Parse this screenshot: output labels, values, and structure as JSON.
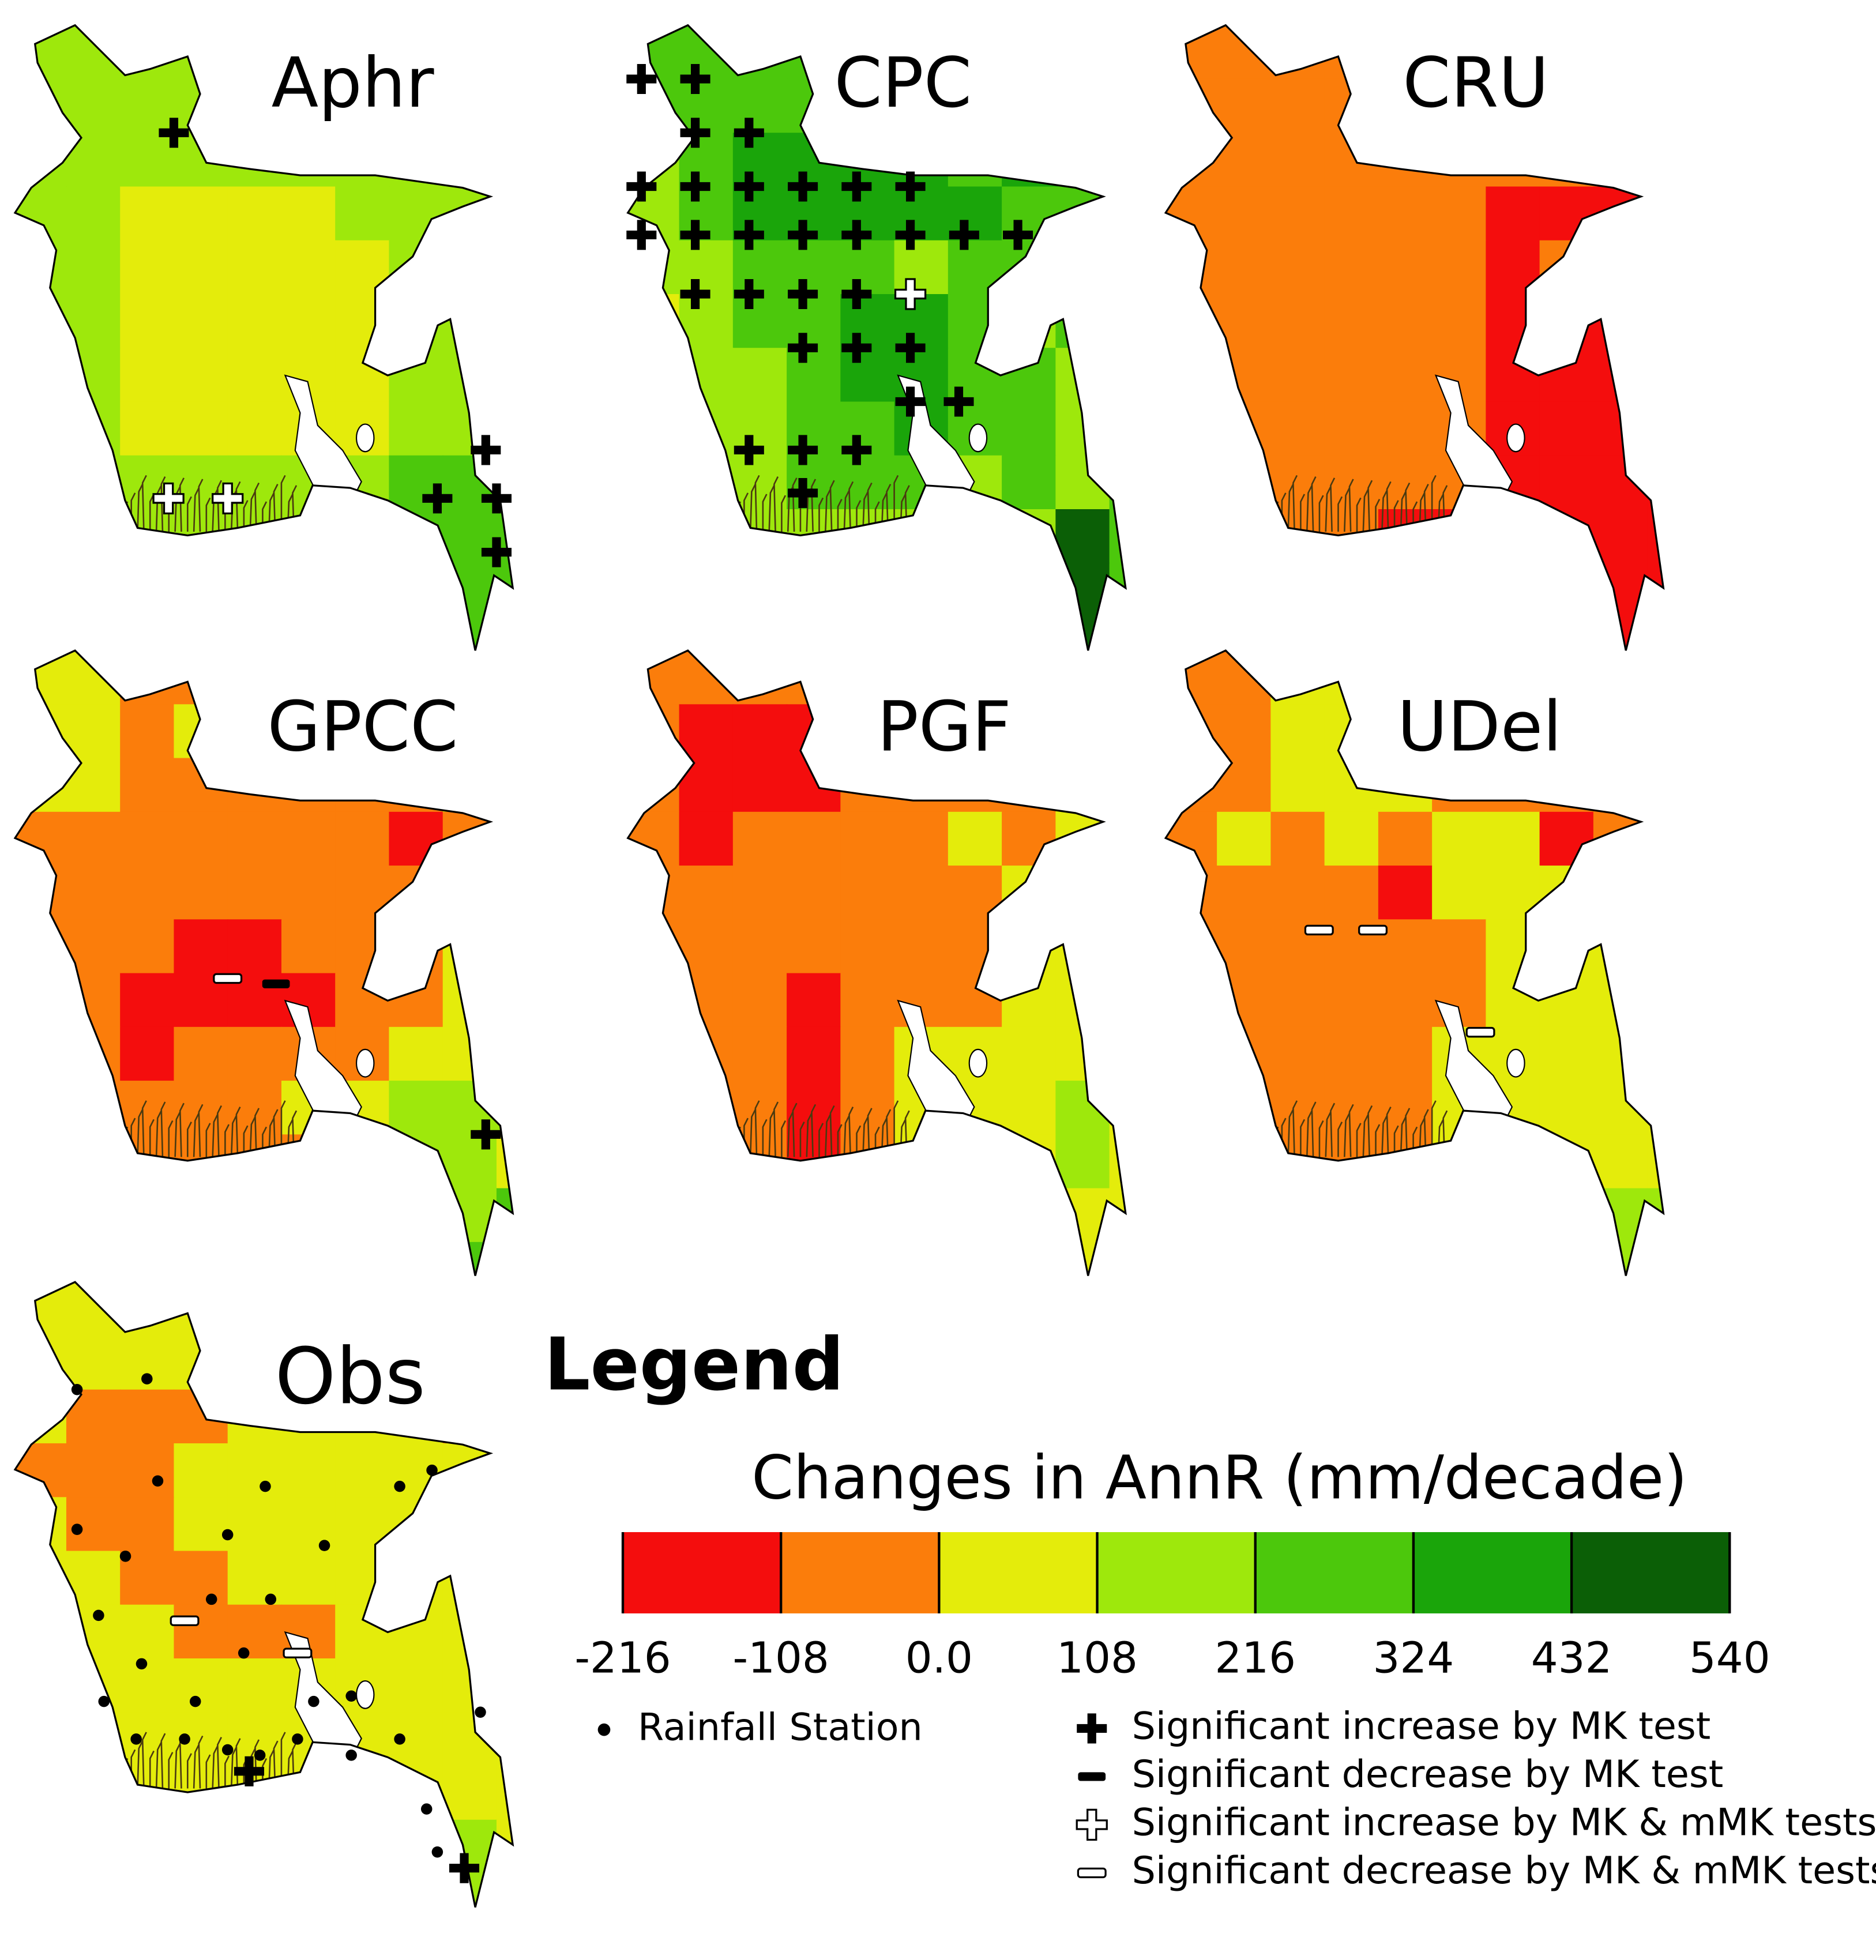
{
  "panels": [
    {
      "title": "Aphr",
      "grid": [
        [
          3,
          3,
          3,
          3,
          3,
          3,
          3,
          3,
          3,
          3
        ],
        [
          3,
          3,
          3,
          3,
          3,
          3,
          3,
          3,
          3,
          3
        ],
        [
          3,
          3,
          3,
          3,
          3,
          3,
          3,
          3,
          3,
          3
        ],
        [
          3,
          3,
          2,
          2,
          2,
          2,
          3,
          3,
          3,
          3
        ],
        [
          3,
          3,
          2,
          2,
          2,
          2,
          2,
          3,
          3,
          3
        ],
        [
          3,
          3,
          2,
          2,
          2,
          2,
          2,
          3,
          3,
          3
        ],
        [
          3,
          3,
          2,
          2,
          2,
          2,
          2,
          3,
          3,
          3
        ],
        [
          3,
          3,
          2,
          2,
          2,
          2,
          2,
          3,
          3,
          3
        ],
        [
          3,
          3,
          3,
          3,
          3,
          3,
          3,
          4,
          4,
          4
        ],
        [
          3,
          3,
          3,
          3,
          3,
          3,
          3,
          4,
          4,
          4
        ],
        [
          3,
          3,
          3,
          3,
          3,
          3,
          3,
          4,
          4,
          4
        ],
        [
          3,
          3,
          3,
          3,
          3,
          3,
          3,
          4,
          4,
          4
        ]
      ],
      "markers": [
        [
          3.0,
          2.0,
          0
        ],
        [
          8.8,
          7.9,
          0
        ],
        [
          7.9,
          8.8,
          0
        ],
        [
          9.0,
          8.8,
          0
        ],
        [
          9.0,
          9.8,
          0
        ],
        [
          2.9,
          8.8,
          2
        ],
        [
          4.0,
          8.8,
          2
        ]
      ]
    },
    {
      "title": "CPC",
      "grid": [
        [
          4,
          4,
          4,
          4,
          4,
          4,
          4,
          4,
          4,
          4
        ],
        [
          4,
          4,
          4,
          4,
          4,
          4,
          4,
          4,
          4,
          4
        ],
        [
          3,
          4,
          5,
          5,
          5,
          5,
          4,
          5,
          5,
          5
        ],
        [
          3,
          4,
          5,
          5,
          5,
          5,
          5,
          4,
          4,
          4
        ],
        [
          3,
          3,
          4,
          4,
          4,
          3,
          4,
          4,
          4,
          4
        ],
        [
          2,
          3,
          4,
          4,
          5,
          5,
          4,
          3,
          4,
          4
        ],
        [
          3,
          3,
          3,
          4,
          5,
          5,
          4,
          4,
          3,
          3
        ],
        [
          3,
          3,
          3,
          4,
          4,
          5,
          4,
          4,
          3,
          3
        ],
        [
          2,
          3,
          3,
          4,
          4,
          4,
          3,
          4,
          3,
          4
        ],
        [
          3,
          3,
          3,
          3,
          3,
          3,
          3,
          3,
          6,
          4
        ],
        [
          3,
          3,
          3,
          3,
          3,
          3,
          3,
          3,
          6,
          4
        ],
        [
          3,
          3,
          3,
          3,
          3,
          3,
          3,
          3,
          6,
          4
        ]
      ],
      "markers": [
        [
          0.3,
          1.0,
          0
        ],
        [
          1.3,
          1.0,
          0
        ],
        [
          1.3,
          2.0,
          0
        ],
        [
          2.3,
          2.0,
          0
        ],
        [
          0.3,
          3.0,
          0
        ],
        [
          1.3,
          3.0,
          0
        ],
        [
          2.3,
          3.0,
          0
        ],
        [
          3.3,
          3.0,
          0
        ],
        [
          4.3,
          3.0,
          0
        ],
        [
          5.3,
          3.0,
          0
        ],
        [
          0.3,
          3.9,
          0
        ],
        [
          1.3,
          3.9,
          0
        ],
        [
          2.3,
          3.9,
          0
        ],
        [
          3.3,
          3.9,
          0
        ],
        [
          4.3,
          3.9,
          0
        ],
        [
          5.3,
          3.9,
          0
        ],
        [
          6.3,
          3.9,
          0
        ],
        [
          7.3,
          3.9,
          0
        ],
        [
          1.3,
          5.0,
          0
        ],
        [
          2.3,
          5.0,
          0
        ],
        [
          3.3,
          5.0,
          0
        ],
        [
          4.3,
          5.0,
          0
        ],
        [
          5.3,
          5.0,
          2
        ],
        [
          3.3,
          6.0,
          0
        ],
        [
          4.3,
          6.0,
          0
        ],
        [
          5.3,
          6.0,
          0
        ],
        [
          5.3,
          7.0,
          0
        ],
        [
          6.2,
          7.0,
          0
        ],
        [
          2.3,
          7.9,
          0
        ],
        [
          3.3,
          7.9,
          0
        ],
        [
          4.3,
          7.9,
          0
        ],
        [
          3.3,
          8.7,
          0
        ]
      ]
    },
    {
      "title": "CRU",
      "grid": [
        [
          1,
          1,
          1,
          1,
          1,
          1,
          1,
          1,
          1,
          1
        ],
        [
          1,
          1,
          1,
          1,
          1,
          1,
          1,
          1,
          1,
          1
        ],
        [
          1,
          1,
          1,
          1,
          1,
          1,
          1,
          1,
          1,
          1
        ],
        [
          1,
          1,
          1,
          1,
          1,
          1,
          0,
          0,
          0,
          0
        ],
        [
          1,
          1,
          1,
          1,
          1,
          1,
          0,
          1,
          0,
          0
        ],
        [
          1,
          1,
          1,
          1,
          1,
          1,
          0,
          0,
          0,
          0
        ],
        [
          1,
          1,
          1,
          1,
          1,
          1,
          0,
          0,
          0,
          0
        ],
        [
          1,
          1,
          1,
          1,
          1,
          1,
          0,
          0,
          0,
          0
        ],
        [
          1,
          1,
          1,
          1,
          1,
          1,
          0,
          0,
          0,
          0
        ],
        [
          1,
          1,
          1,
          1,
          0,
          0,
          0,
          0,
          0,
          0
        ],
        [
          1,
          1,
          1,
          1,
          0,
          0,
          0,
          0,
          0,
          0
        ],
        [
          1,
          1,
          1,
          1,
          1,
          0,
          0,
          0,
          0,
          0
        ]
      ],
      "markers": []
    },
    {
      "title": "GPCC",
      "grid": [
        [
          2,
          2,
          1,
          1,
          1,
          1,
          1,
          1,
          2,
          2
        ],
        [
          2,
          2,
          1,
          2,
          1,
          1,
          1,
          1,
          2,
          2
        ],
        [
          2,
          2,
          1,
          1,
          1,
          1,
          1,
          1,
          2,
          2
        ],
        [
          1,
          1,
          1,
          1,
          1,
          1,
          1,
          0,
          1,
          2
        ],
        [
          1,
          1,
          1,
          1,
          1,
          1,
          1,
          1,
          1,
          2
        ],
        [
          1,
          1,
          1,
          0,
          0,
          1,
          1,
          1,
          2,
          2
        ],
        [
          1,
          1,
          0,
          0,
          0,
          0,
          1,
          1,
          2,
          2
        ],
        [
          1,
          1,
          0,
          1,
          1,
          1,
          1,
          2,
          2,
          2
        ],
        [
          1,
          1,
          1,
          1,
          1,
          2,
          2,
          3,
          3,
          3
        ],
        [
          1,
          1,
          1,
          1,
          1,
          1,
          2,
          3,
          3,
          2
        ],
        [
          1,
          1,
          1,
          1,
          1,
          1,
          2,
          2,
          3,
          4
        ],
        [
          1,
          1,
          1,
          1,
          1,
          1,
          2,
          2,
          4,
          4
        ]
      ],
      "markers": [
        [
          4.0,
          6.1,
          3
        ],
        [
          4.9,
          6.2,
          1
        ],
        [
          8.8,
          9.0,
          0
        ]
      ]
    },
    {
      "title": "PGF",
      "grid": [
        [
          1,
          1,
          1,
          1,
          1,
          1,
          1,
          1,
          2,
          2
        ],
        [
          1,
          0,
          0,
          0,
          1,
          1,
          1,
          1,
          2,
          2
        ],
        [
          1,
          0,
          0,
          0,
          1,
          1,
          1,
          1,
          2,
          2
        ],
        [
          1,
          0,
          1,
          1,
          1,
          1,
          2,
          1,
          2,
          2
        ],
        [
          1,
          1,
          1,
          1,
          1,
          1,
          1,
          2,
          2,
          2
        ],
        [
          1,
          1,
          1,
          1,
          1,
          1,
          1,
          2,
          2,
          2
        ],
        [
          1,
          1,
          1,
          0,
          1,
          1,
          1,
          2,
          2,
          2
        ],
        [
          1,
          1,
          1,
          0,
          1,
          2,
          2,
          2,
          2,
          2
        ],
        [
          1,
          1,
          1,
          0,
          1,
          2,
          2,
          2,
          3,
          2
        ],
        [
          1,
          1,
          1,
          0,
          1,
          2,
          2,
          2,
          3,
          2
        ],
        [
          1,
          1,
          1,
          1,
          2,
          2,
          2,
          2,
          2,
          2
        ],
        [
          1,
          1,
          1,
          1,
          2,
          2,
          2,
          2,
          2,
          2
        ]
      ],
      "markers": []
    },
    {
      "title": "UDel",
      "grid": [
        [
          1,
          1,
          2,
          2,
          2,
          1,
          1,
          1,
          1,
          1
        ],
        [
          1,
          1,
          2,
          2,
          2,
          1,
          1,
          1,
          1,
          1
        ],
        [
          1,
          1,
          2,
          2,
          2,
          1,
          1,
          1,
          1,
          1
        ],
        [
          1,
          2,
          1,
          2,
          1,
          2,
          2,
          0,
          1,
          2
        ],
        [
          1,
          1,
          1,
          1,
          0,
          2,
          2,
          2,
          2,
          2
        ],
        [
          1,
          1,
          1,
          1,
          1,
          1,
          2,
          2,
          2,
          2
        ],
        [
          2,
          1,
          1,
          1,
          1,
          1,
          2,
          2,
          2,
          2
        ],
        [
          2,
          1,
          1,
          1,
          1,
          2,
          2,
          2,
          2,
          1
        ],
        [
          2,
          1,
          1,
          1,
          1,
          2,
          2,
          2,
          2,
          2
        ],
        [
          2,
          1,
          1,
          1,
          1,
          2,
          2,
          2,
          2,
          2
        ],
        [
          2,
          2,
          2,
          2,
          2,
          2,
          2,
          2,
          3,
          3
        ],
        [
          2,
          2,
          2,
          2,
          2,
          2,
          2,
          2,
          3,
          4
        ]
      ],
      "markers": [
        [
          2.9,
          5.2,
          3
        ],
        [
          3.9,
          5.2,
          3
        ],
        [
          5.9,
          7.1,
          3
        ]
      ]
    },
    {
      "title": "Obs",
      "grid": [
        [
          2,
          2,
          2,
          2,
          2,
          2,
          2,
          2,
          2,
          2
        ],
        [
          2,
          2,
          2,
          2,
          2,
          2,
          2,
          2,
          2,
          2
        ],
        [
          2,
          1,
          1,
          1,
          2,
          2,
          2,
          2,
          1,
          2
        ],
        [
          1,
          1,
          1,
          2,
          2,
          2,
          2,
          2,
          2,
          2
        ],
        [
          2,
          1,
          1,
          2,
          2,
          2,
          2,
          2,
          2,
          2
        ],
        [
          2,
          2,
          1,
          1,
          2,
          2,
          2,
          2,
          2,
          2
        ],
        [
          2,
          2,
          2,
          1,
          1,
          1,
          2,
          2,
          2,
          2
        ],
        [
          2,
          2,
          2,
          2,
          2,
          2,
          2,
          2,
          2,
          2
        ],
        [
          2,
          2,
          2,
          2,
          2,
          2,
          2,
          2,
          2,
          2
        ],
        [
          2,
          2,
          2,
          2,
          2,
          2,
          2,
          2,
          2,
          2
        ],
        [
          2,
          2,
          2,
          2,
          2,
          2,
          2,
          2,
          3,
          2
        ],
        [
          2,
          2,
          2,
          2,
          2,
          2,
          2,
          2,
          3,
          2
        ]
      ],
      "markers": [
        [
          3.2,
          6.3,
          3
        ],
        [
          5.3,
          6.9,
          3
        ],
        [
          4.4,
          9.1,
          0
        ],
        [
          8.4,
          10.9,
          0
        ],
        [
          1.2,
          2.0,
          4
        ],
        [
          2.5,
          1.8,
          4
        ],
        [
          2.7,
          3.7,
          4
        ],
        [
          4.7,
          3.8,
          4
        ],
        [
          7.2,
          3.8,
          4
        ],
        [
          7.8,
          3.5,
          4
        ],
        [
          1.2,
          4.6,
          4
        ],
        [
          2.1,
          5.1,
          4
        ],
        [
          4.0,
          4.7,
          4
        ],
        [
          5.8,
          4.9,
          4
        ],
        [
          1.6,
          6.2,
          4
        ],
        [
          3.7,
          5.9,
          4
        ],
        [
          4.8,
          5.9,
          4
        ],
        [
          2.4,
          7.1,
          4
        ],
        [
          4.3,
          6.9,
          4
        ],
        [
          6.3,
          7.7,
          4
        ],
        [
          1.7,
          7.8,
          4
        ],
        [
          3.4,
          7.8,
          4
        ],
        [
          5.6,
          7.8,
          4
        ],
        [
          2.3,
          8.5,
          4
        ],
        [
          3.2,
          8.5,
          4
        ],
        [
          7.2,
          8.5,
          4
        ],
        [
          8.7,
          8.0,
          4
        ],
        [
          5.3,
          8.5,
          4
        ],
        [
          6.3,
          8.8,
          4
        ],
        [
          7.7,
          9.8,
          4
        ],
        [
          7.9,
          10.6,
          4
        ],
        [
          4.0,
          8.7,
          4
        ],
        [
          4.6,
          8.8,
          4
        ]
      ]
    }
  ],
  "legend": {
    "heading": "Legend",
    "title": "Changes in AnnR (mm/decade)",
    "colors": [
      "#f40d0d",
      "#fb7d0b",
      "#e4ec0b",
      "#9ee80c",
      "#4cc80c",
      "#1aa50a",
      "#0b5f06"
    ],
    "ticks": [
      -216,
      -108,
      {
        "value": 0,
        "label": "0.0"
      },
      108,
      216,
      324,
      432,
      540
    ],
    "station": "Rainfall Station",
    "symbols": [
      "Significant increase by MK test",
      "Significant decrease by MK test",
      "Significant increase by MK & mMK tests",
      "Significant decrease by MK & mMK tests"
    ]
  }
}
